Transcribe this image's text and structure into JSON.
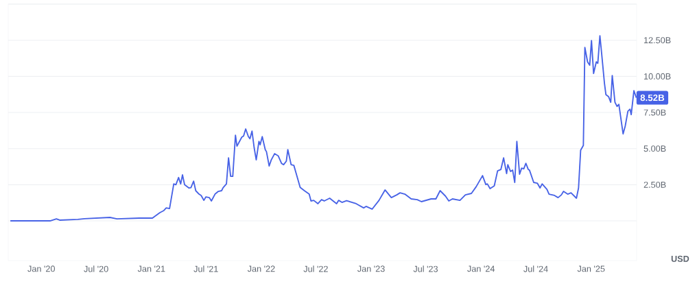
{
  "chart_data": {
    "type": "line",
    "x": [
      "2019-09-20",
      "2020-01-30",
      "2020-02-20",
      "2020-03-02",
      "2020-05-01",
      "2020-05-24",
      "2020-08-16",
      "2020-09-08",
      "2020-11-22",
      "2021-01-04",
      "2021-01-29",
      "2021-02-10",
      "2021-02-19",
      "2021-03-02",
      "2021-03-16",
      "2021-03-23",
      "2021-04-01",
      "2021-04-08",
      "2021-04-14",
      "2021-04-21",
      "2021-05-05",
      "2021-05-12",
      "2021-05-21",
      "2021-05-28",
      "2021-06-08",
      "2021-06-15",
      "2021-06-24",
      "2021-07-01",
      "2021-07-12",
      "2021-07-19",
      "2021-07-31",
      "2021-08-11",
      "2021-08-22",
      "2021-08-27",
      "2021-09-07",
      "2021-09-14",
      "2021-09-21",
      "2021-09-28",
      "2021-10-07",
      "2021-10-12",
      "2021-10-28",
      "2021-11-03",
      "2021-11-10",
      "2021-11-19",
      "2021-11-24",
      "2021-12-01",
      "2021-12-08",
      "2021-12-15",
      "2021-12-24",
      "2021-12-28",
      "2022-01-04",
      "2022-01-14",
      "2022-01-18",
      "2022-01-27",
      "2022-02-03",
      "2022-02-14",
      "2022-02-26",
      "2022-03-09",
      "2022-03-16",
      "2022-03-25",
      "2022-03-30",
      "2022-04-10",
      "2022-04-19",
      "2022-05-10",
      "2022-05-24",
      "2022-06-09",
      "2022-06-15",
      "2022-06-24",
      "2022-07-08",
      "2022-07-20",
      "2022-07-29",
      "2022-08-16",
      "2022-09-08",
      "2022-09-15",
      "2022-09-26",
      "2022-10-11",
      "2022-11-12",
      "2022-12-07",
      "2022-12-15",
      "2023-01-04",
      "2023-01-27",
      "2023-02-16",
      "2023-03-09",
      "2023-03-27",
      "2023-04-07",
      "2023-04-23",
      "2023-05-14",
      "2023-06-03",
      "2023-06-17",
      "2023-07-19",
      "2023-08-04",
      "2023-08-18",
      "2023-09-05",
      "2023-09-16",
      "2023-09-28",
      "2023-10-23",
      "2023-11-10",
      "2023-11-30",
      "2023-12-16",
      "2024-01-06",
      "2024-01-17",
      "2024-01-22",
      "2024-01-31",
      "2024-02-14",
      "2024-02-25",
      "2024-03-07",
      "2024-03-16",
      "2024-03-26",
      "2024-03-30",
      "2024-04-08",
      "2024-04-15",
      "2024-04-22",
      "2024-04-29",
      "2024-05-08",
      "2024-05-15",
      "2024-05-22",
      "2024-05-29",
      "2024-06-06",
      "2024-06-10",
      "2024-06-24",
      "2024-07-06",
      "2024-07-15",
      "2024-07-22",
      "2024-08-07",
      "2024-08-14",
      "2024-09-01",
      "2024-09-13",
      "2024-09-24",
      "2024-10-01",
      "2024-10-15",
      "2024-10-26",
      "2024-11-13",
      "2024-11-20",
      "2024-11-27",
      "2024-12-06",
      "2024-12-11",
      "2024-12-20",
      "2024-12-27",
      "2025-01-02",
      "2025-01-09",
      "2025-01-18",
      "2025-01-23",
      "2025-01-30",
      "2025-02-05",
      "2025-02-14",
      "2025-02-19",
      "2025-02-28",
      "2025-03-07",
      "2025-03-12",
      "2025-03-21",
      "2025-03-28",
      "2025-04-03",
      "2025-04-17",
      "2025-04-24",
      "2025-05-03",
      "2025-05-10",
      "2025-05-14",
      "2025-05-23",
      "2025-05-31"
    ],
    "values": [
      0.0,
      0.0,
      0.14,
      0.05,
      0.1,
      0.15,
      0.24,
      0.14,
      0.19,
      0.19,
      0.57,
      0.7,
      0.9,
      0.85,
      2.56,
      2.5,
      3.0,
      2.56,
      3.18,
      2.5,
      2.28,
      2.3,
      2.75,
      2.09,
      1.85,
      1.76,
      1.42,
      1.66,
      1.61,
      1.38,
      1.85,
      2.04,
      2.09,
      2.3,
      2.56,
      4.36,
      3.08,
      3.08,
      5.93,
      5.17,
      5.79,
      5.88,
      6.36,
      5.83,
      5.69,
      6.21,
      5.08,
      4.22,
      5.5,
      5.27,
      5.83,
      4.93,
      4.79,
      3.8,
      4.22,
      4.65,
      4.5,
      3.98,
      3.89,
      4.13,
      4.93,
      3.89,
      3.84,
      2.32,
      2.09,
      1.85,
      1.38,
      1.42,
      1.19,
      1.47,
      1.38,
      1.57,
      1.19,
      1.42,
      1.28,
      1.4,
      1.19,
      0.9,
      1.0,
      0.81,
      1.42,
      2.14,
      1.61,
      1.8,
      1.94,
      1.85,
      1.52,
      1.47,
      1.33,
      1.52,
      1.52,
      2.09,
      1.71,
      1.38,
      1.52,
      1.42,
      1.8,
      1.9,
      2.37,
      3.13,
      2.51,
      2.56,
      2.23,
      2.42,
      3.46,
      3.56,
      4.36,
      3.27,
      3.89,
      3.42,
      3.51,
      2.66,
      5.5,
      3.23,
      3.65,
      3.6,
      3.98,
      3.56,
      3.51,
      2.66,
      2.61,
      2.28,
      2.56,
      2.18,
      1.85,
      1.76,
      1.61,
      1.8,
      2.04,
      1.85,
      1.94,
      1.57,
      2.28,
      4.89,
      5.22,
      12.0,
      11.0,
      10.77,
      12.48,
      10.2,
      11.0,
      10.91,
      12.81,
      11.53,
      9.54,
      8.73,
      8.59,
      8.21,
      10.06,
      8.21,
      7.92,
      8.06,
      6.02,
      6.55,
      7.59,
      7.73,
      7.35,
      9.01,
      8.52
    ],
    "color": "#4762e6",
    "xlim": [
      "2019-09-13",
      "2025-06-01"
    ],
    "xticks": [
      {
        "value": "2020-01-01",
        "label": "Jan '20"
      },
      {
        "value": "2020-07-01",
        "label": "Jul '20"
      },
      {
        "value": "2021-01-01",
        "label": "Jan '21"
      },
      {
        "value": "2021-07-01",
        "label": "Jul '21"
      },
      {
        "value": "2022-01-01",
        "label": "Jan '22"
      },
      {
        "value": "2022-07-01",
        "label": "Jul '22"
      },
      {
        "value": "2023-01-01",
        "label": "Jan '23"
      },
      {
        "value": "2023-07-01",
        "label": "Jul '23"
      },
      {
        "value": "2024-01-01",
        "label": "Jan '24"
      },
      {
        "value": "2024-07-01",
        "label": "Jul '24"
      },
      {
        "value": "2025-01-01",
        "label": "Jan '25"
      }
    ],
    "ylim": [
      -2.75,
      15
    ],
    "yticks": [
      {
        "value": 0,
        "label": null
      },
      {
        "value": 2.5,
        "label": "2.50B"
      },
      {
        "value": 5,
        "label": "5.00B"
      },
      {
        "value": 7.5,
        "label": "7.50B"
      },
      {
        "value": 10,
        "label": "10.00B"
      },
      {
        "value": 12.5,
        "label": "12.50B"
      },
      {
        "value": 15,
        "label": null
      }
    ],
    "ylabel": "USD",
    "grid": "y",
    "annotations": [
      {
        "text": "8.52B",
        "x": "2025-05-31",
        "y": 8.52
      }
    ]
  }
}
